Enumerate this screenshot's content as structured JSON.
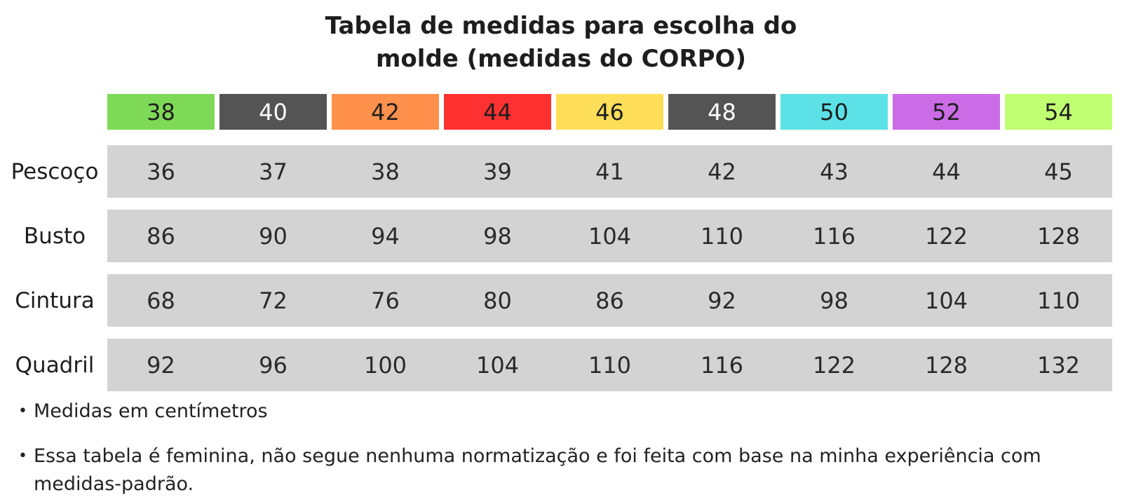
{
  "title": {
    "line1": "Tabela de medidas para escolha do",
    "line2": "molde (medidas do CORPO)"
  },
  "sizes": [
    {
      "label": "38",
      "color": "#7ed957",
      "text_color": "#1e1e1e"
    },
    {
      "label": "40",
      "color": "#545454",
      "text_color": "#ffffff"
    },
    {
      "label": "42",
      "color": "#ff914d",
      "text_color": "#1e1e1e"
    },
    {
      "label": "44",
      "color": "#ff3131",
      "text_color": "#1e1e1e"
    },
    {
      "label": "46",
      "color": "#ffde59",
      "text_color": "#1e1e1e"
    },
    {
      "label": "48",
      "color": "#545454",
      "text_color": "#ffffff"
    },
    {
      "label": "50",
      "color": "#5ce1e6",
      "text_color": "#1e1e1e"
    },
    {
      "label": "52",
      "color": "#cb6ce6",
      "text_color": "#1e1e1e"
    },
    {
      "label": "54",
      "color": "#c1ff72",
      "text_color": "#1e1e1e"
    }
  ],
  "rows": [
    {
      "label": "Pescoço",
      "values": [
        "36",
        "37",
        "38",
        "39",
        "41",
        "42",
        "43",
        "44",
        "45"
      ]
    },
    {
      "label": "Busto",
      "values": [
        "86",
        "90",
        "94",
        "98",
        "104",
        "110",
        "116",
        "122",
        "128"
      ]
    },
    {
      "label": "Cintura",
      "values": [
        "68",
        "72",
        "76",
        "80",
        "86",
        "92",
        "98",
        "104",
        "110"
      ]
    },
    {
      "label": "Quadril",
      "values": [
        "92",
        "96",
        "100",
        "104",
        "110",
        "116",
        "122",
        "128",
        "132"
      ]
    }
  ],
  "notes": [
    "Medidas em centímetros",
    "Essa tabela é feminina, não segue nenhuma normatização e foi feita com base na minha experiência com medidas-padrão."
  ],
  "band_color": "#d3d3d3"
}
